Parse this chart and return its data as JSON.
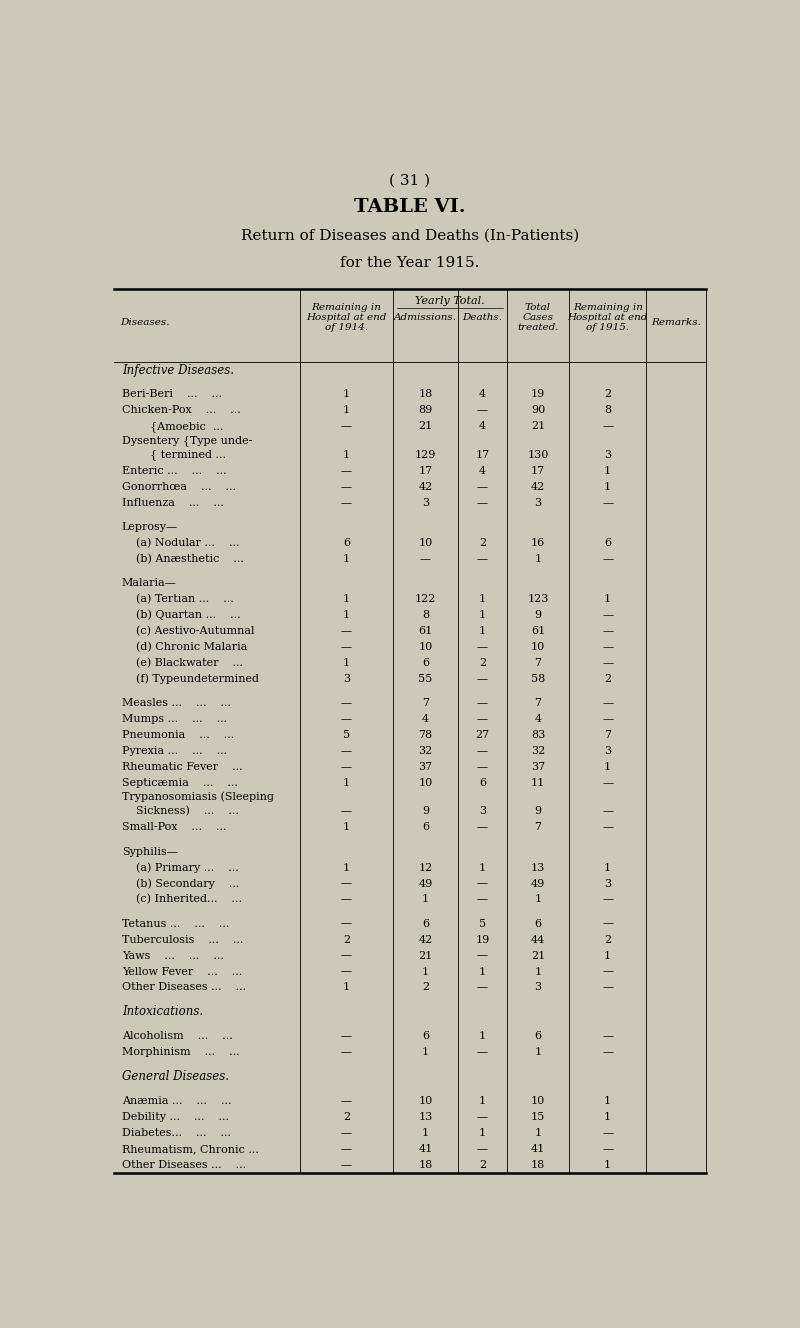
{
  "page_number": "( 31 )",
  "title1": "TABLE VI.",
  "title2": "Return of Diseases and Deaths (In-Patients)",
  "title3": "for the Year 1915.",
  "bg_color": "#cdc9b8",
  "yearly_total_header": "Yearly Total.",
  "rows": [
    {
      "label": "Infective Diseases.",
      "type": "section"
    },
    {
      "label": "",
      "type": "spacer"
    },
    {
      "label": "Beri-Beri    ...    ...",
      "type": "data",
      "remaining1914": "1",
      "admissions": "18",
      "deaths": "4",
      "total": "19",
      "remaining1915": "2"
    },
    {
      "label": "Chicken-Pox    ...    ...",
      "type": "data",
      "remaining1914": "1",
      "admissions": "89",
      "deaths": "—",
      "total": "90",
      "remaining1915": "8"
    },
    {
      "label": "        {Amoebic  ...",
      "type": "data",
      "remaining1914": "—",
      "admissions": "21",
      "deaths": "4",
      "total": "21",
      "remaining1915": "—"
    },
    {
      "label": "Dysentery {Type unde-",
      "type": "label_only"
    },
    {
      "label": "        { termined ...",
      "type": "data",
      "remaining1914": "1",
      "admissions": "129",
      "deaths": "17",
      "total": "130",
      "remaining1915": "3"
    },
    {
      "label": "Enteric ...    ...    ...",
      "type": "data",
      "remaining1914": "—",
      "admissions": "17",
      "deaths": "4",
      "total": "17",
      "remaining1915": "1"
    },
    {
      "label": "Gonorrhœa    ...    ...",
      "type": "data",
      "remaining1914": "—",
      "admissions": "42",
      "deaths": "—",
      "total": "42",
      "remaining1915": "1"
    },
    {
      "label": "Influenza    ...    ...",
      "type": "data",
      "remaining1914": "—",
      "admissions": "3",
      "deaths": "—",
      "total": "3",
      "remaining1915": "—"
    },
    {
      "label": "",
      "type": "spacer"
    },
    {
      "label": "Leprosy—",
      "type": "subsection"
    },
    {
      "label": "    (a) Nodular ...    ...",
      "type": "data",
      "remaining1914": "6",
      "admissions": "10",
      "deaths": "2",
      "total": "16",
      "remaining1915": "6"
    },
    {
      "label": "    (b) Anæsthetic    ...",
      "type": "data",
      "remaining1914": "1",
      "admissions": "—",
      "deaths": "—",
      "total": "1",
      "remaining1915": "—"
    },
    {
      "label": "",
      "type": "spacer"
    },
    {
      "label": "Malaria—",
      "type": "subsection"
    },
    {
      "label": "    (a) Tertian ...    ...",
      "type": "data",
      "remaining1914": "1",
      "admissions": "122",
      "deaths": "1",
      "total": "123",
      "remaining1915": "1"
    },
    {
      "label": "    (b) Quartan ...    ...",
      "type": "data",
      "remaining1914": "1",
      "admissions": "8",
      "deaths": "1",
      "total": "9",
      "remaining1915": "—"
    },
    {
      "label": "    (c) Aestivo-Autumnal",
      "type": "data",
      "remaining1914": "—",
      "admissions": "61",
      "deaths": "1",
      "total": "61",
      "remaining1915": "—"
    },
    {
      "label": "    (d) Chronic Malaria",
      "type": "data",
      "remaining1914": "—",
      "admissions": "10",
      "deaths": "—",
      "total": "10",
      "remaining1915": "—"
    },
    {
      "label": "    (e) Blackwater    ...",
      "type": "data",
      "remaining1914": "1",
      "admissions": "6",
      "deaths": "2",
      "total": "7",
      "remaining1915": "—"
    },
    {
      "label": "    (f) Typeundetermined",
      "type": "data",
      "remaining1914": "3",
      "admissions": "55",
      "deaths": "—",
      "total": "58",
      "remaining1915": "2"
    },
    {
      "label": "",
      "type": "spacer"
    },
    {
      "label": "Measles ...    ...    ...",
      "type": "data",
      "remaining1914": "—",
      "admissions": "7",
      "deaths": "—",
      "total": "7",
      "remaining1915": "—"
    },
    {
      "label": "Mumps ...    ...    ...",
      "type": "data",
      "remaining1914": "—",
      "admissions": "4",
      "deaths": "—",
      "total": "4",
      "remaining1915": "—"
    },
    {
      "label": "Pneumonia    ...    ...",
      "type": "data",
      "remaining1914": "5",
      "admissions": "78",
      "deaths": "27",
      "total": "83",
      "remaining1915": "7"
    },
    {
      "label": "Pyrexia ...    ...    ...",
      "type": "data",
      "remaining1914": "—",
      "admissions": "32",
      "deaths": "—",
      "total": "32",
      "remaining1915": "3"
    },
    {
      "label": "Rheumatic Fever    ...",
      "type": "data",
      "remaining1914": "—",
      "admissions": "37",
      "deaths": "—",
      "total": "37",
      "remaining1915": "1"
    },
    {
      "label": "Septicæmia    ...    ...",
      "type": "data",
      "remaining1914": "1",
      "admissions": "10",
      "deaths": "6",
      "total": "11",
      "remaining1915": "—"
    },
    {
      "label": "Trypanosomiasis (Sleeping",
      "type": "label_only"
    },
    {
      "label": "    Sickness)    ...    ...",
      "type": "data",
      "remaining1914": "—",
      "admissions": "9",
      "deaths": "3",
      "total": "9",
      "remaining1915": "—"
    },
    {
      "label": "Small-Pox    ...    ...",
      "type": "data",
      "remaining1914": "1",
      "admissions": "6",
      "deaths": "—",
      "total": "7",
      "remaining1915": "—"
    },
    {
      "label": "",
      "type": "spacer"
    },
    {
      "label": "Syphilis—",
      "type": "subsection"
    },
    {
      "label": "    (a) Primary ...    ...",
      "type": "data",
      "remaining1914": "1",
      "admissions": "12",
      "deaths": "1",
      "total": "13",
      "remaining1915": "1"
    },
    {
      "label": "    (b) Secondary    ...",
      "type": "data",
      "remaining1914": "—",
      "admissions": "49",
      "deaths": "—",
      "total": "49",
      "remaining1915": "3"
    },
    {
      "label": "    (c) Inherited...    ...",
      "type": "data",
      "remaining1914": "—",
      "admissions": "1",
      "deaths": "—",
      "total": "1",
      "remaining1915": "—"
    },
    {
      "label": "",
      "type": "spacer"
    },
    {
      "label": "Tetanus ...    ...    ...",
      "type": "data",
      "remaining1914": "—",
      "admissions": "6",
      "deaths": "5",
      "total": "6",
      "remaining1915": "—"
    },
    {
      "label": "Tuberculosis    ...    ...",
      "type": "data",
      "remaining1914": "2",
      "admissions": "42",
      "deaths": "19",
      "total": "44",
      "remaining1915": "2"
    },
    {
      "label": "Yaws    ...    ...    ...",
      "type": "data",
      "remaining1914": "—",
      "admissions": "21",
      "deaths": "—",
      "total": "21",
      "remaining1915": "1"
    },
    {
      "label": "Yellow Fever    ...    ...",
      "type": "data",
      "remaining1914": "—",
      "admissions": "1",
      "deaths": "1",
      "total": "1",
      "remaining1915": "—"
    },
    {
      "label": "Other Diseases ...    ...",
      "type": "data",
      "remaining1914": "1",
      "admissions": "2",
      "deaths": "—",
      "total": "3",
      "remaining1915": "—"
    },
    {
      "label": "",
      "type": "spacer"
    },
    {
      "label": "Intoxications.",
      "type": "section"
    },
    {
      "label": "",
      "type": "spacer"
    },
    {
      "label": "Alcoholism    ...    ...",
      "type": "data",
      "remaining1914": "—",
      "admissions": "6",
      "deaths": "1",
      "total": "6",
      "remaining1915": "—"
    },
    {
      "label": "Morphinism    ...    ...",
      "type": "data",
      "remaining1914": "—",
      "admissions": "1",
      "deaths": "—",
      "total": "1",
      "remaining1915": "—"
    },
    {
      "label": "",
      "type": "spacer"
    },
    {
      "label": "General Diseases.",
      "type": "section"
    },
    {
      "label": "",
      "type": "spacer"
    },
    {
      "label": "Anæmia ...    ...    ...",
      "type": "data",
      "remaining1914": "—",
      "admissions": "10",
      "deaths": "1",
      "total": "10",
      "remaining1915": "1"
    },
    {
      "label": "Debility ...    ...    ...",
      "type": "data",
      "remaining1914": "2",
      "admissions": "13",
      "deaths": "—",
      "total": "15",
      "remaining1915": "1"
    },
    {
      "label": "Diabetes...    ...    ...",
      "type": "data",
      "remaining1914": "—",
      "admissions": "1",
      "deaths": "1",
      "total": "1",
      "remaining1915": "—"
    },
    {
      "label": "Rheumatism, Chronic ...",
      "type": "data",
      "remaining1914": "—",
      "admissions": "41",
      "deaths": "—",
      "total": "41",
      "remaining1915": "—"
    },
    {
      "label": "Other Diseases ...    ...",
      "type": "data",
      "remaining1914": "—",
      "admissions": "18",
      "deaths": "2",
      "total": "18",
      "remaining1915": "1"
    }
  ]
}
